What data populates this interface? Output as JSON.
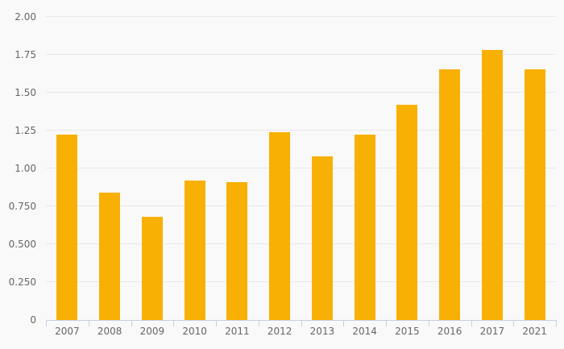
{
  "chart_data": {
    "type": "bar",
    "title": "",
    "xlabel": "",
    "ylabel": "",
    "categories": [
      "2007",
      "2008",
      "2009",
      "2010",
      "2011",
      "2012",
      "2013",
      "2014",
      "2015",
      "2016",
      "2017",
      "2021"
    ],
    "values": [
      1.22,
      0.84,
      0.68,
      0.92,
      0.91,
      1.24,
      1.08,
      1.22,
      1.42,
      1.65,
      1.78,
      1.65
    ],
    "ylim": [
      0,
      2.0
    ],
    "ytick_values": [
      0,
      0.25,
      0.5,
      0.75,
      1.0,
      1.25,
      1.5,
      1.75,
      2.0
    ],
    "ytick_labels": [
      "0",
      "0.250",
      "0.500",
      "0.750",
      "1.00",
      "1.25",
      "1.50",
      "1.75",
      "2.00"
    ],
    "grid": true,
    "legend": "none",
    "colors": {
      "bar": "#f9b004",
      "background": "#f9f9f9",
      "gridline": "#e8e8e8",
      "axis_line": "#c5cfe2",
      "tick_label": "#666666"
    }
  }
}
